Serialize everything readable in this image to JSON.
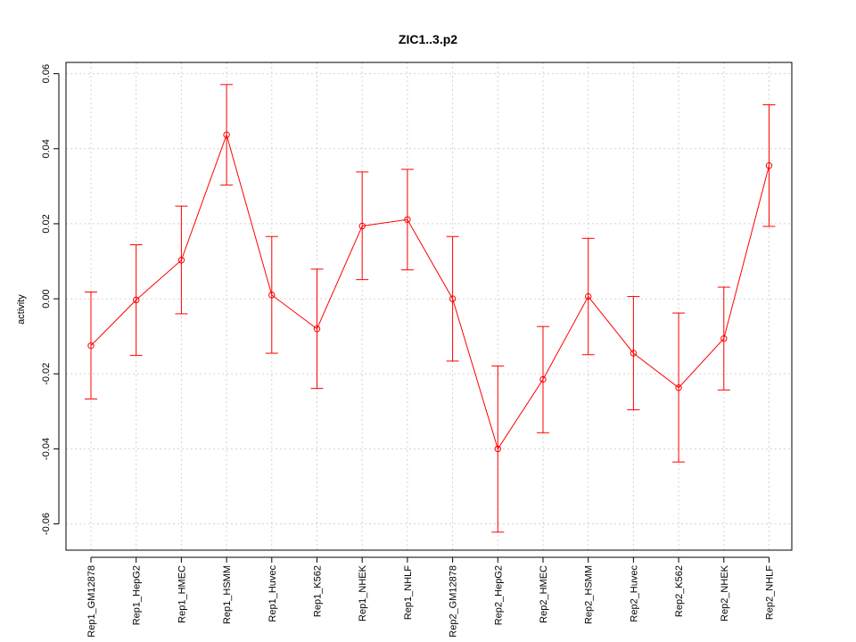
{
  "chart_data": {
    "type": "line",
    "title": "ZIC1..3.p2",
    "xlabel": "",
    "ylabel": "activity",
    "ylim": [
      -0.067,
      0.063
    ],
    "yticks": [
      "0.06",
      "0.04",
      "0.02",
      "0.00",
      "-0.02",
      "-0.04",
      "-0.06"
    ],
    "ytick_values": [
      0.06,
      0.04,
      0.02,
      0.0,
      -0.02,
      -0.04,
      -0.06
    ],
    "grid": true,
    "categories": [
      "Rep1_GM12878",
      "Rep1_HepG2",
      "Rep1_HMEC",
      "Rep1_HSMM",
      "Rep1_Huvec",
      "Rep1_K562",
      "Rep1_NHEK",
      "Rep1_NHLF",
      "Rep2_GM12878",
      "Rep2_HepG2",
      "Rep2_HMEC",
      "Rep2_HSMM",
      "Rep2_Huvec",
      "Rep2_K562",
      "Rep2_NHEK",
      "Rep2_NHLF"
    ],
    "series": [
      {
        "color": "#ff0000",
        "values": [
          -0.0125,
          -0.0003,
          0.0103,
          0.0437,
          0.001,
          -0.008,
          0.0194,
          0.0211,
          0.0,
          -0.04,
          -0.0215,
          0.0006,
          -0.0145,
          -0.0237,
          -0.0106,
          0.0355
        ],
        "upper": [
          0.0018,
          0.0144,
          0.0247,
          0.0571,
          0.0166,
          0.0079,
          0.0338,
          0.0345,
          0.0166,
          -0.0179,
          -0.0074,
          0.0161,
          0.0006,
          -0.0038,
          0.0031,
          0.0517
        ],
        "lower": [
          -0.0267,
          -0.0151,
          -0.004,
          0.0303,
          -0.0145,
          -0.0239,
          0.0051,
          0.0077,
          -0.0166,
          -0.0622,
          -0.0357,
          -0.0149,
          -0.0296,
          -0.0435,
          -0.0243,
          0.0193
        ]
      }
    ]
  }
}
